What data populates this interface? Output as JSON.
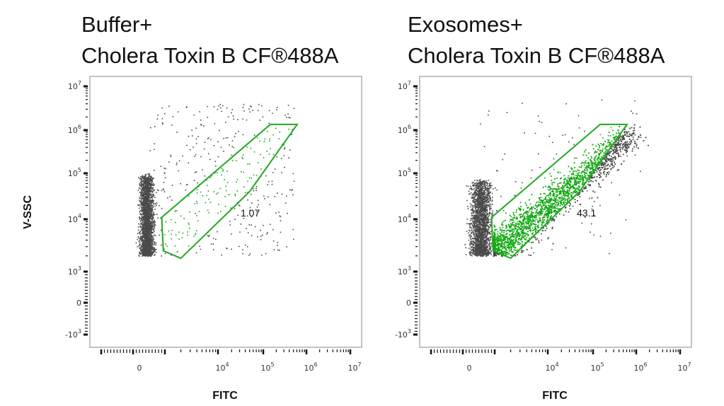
{
  "chart_data": [
    {
      "type": "scatter",
      "title_lines": [
        "Buffer+",
        "Cholera Toxin B CF®488A"
      ],
      "xlabel": "FITC",
      "ylabel": "V-SSC",
      "x_scale": "biexponential",
      "y_scale": "biexponential",
      "x_ticks": [
        {
          "base": "0",
          "exp": ""
        },
        {
          "base": "10",
          "exp": "4"
        },
        {
          "base": "10",
          "exp": "5"
        },
        {
          "base": "10",
          "exp": "6"
        },
        {
          "base": "10",
          "exp": "7"
        }
      ],
      "y_ticks": [
        {
          "base": "10",
          "exp": "7"
        },
        {
          "base": "10",
          "exp": "6"
        },
        {
          "base": "10",
          "exp": "5"
        },
        {
          "base": "10",
          "exp": "4"
        },
        {
          "base": "10",
          "exp": "3"
        },
        {
          "base": "0",
          "exp": ""
        },
        {
          "base": "-10",
          "exp": "3"
        }
      ],
      "gate": {
        "percent": "1.07",
        "color": "#22a822",
        "vertices": [
          [
            900,
            11000
          ],
          [
            950,
            2500
          ],
          [
            2000,
            1800
          ],
          [
            50000,
            40000
          ],
          [
            610000,
            1350000
          ],
          [
            146000,
            1350000
          ]
        ]
      },
      "colors": {
        "events": "#4a4a4a",
        "gated_events": "#1aa31a"
      }
    },
    {
      "type": "scatter",
      "title_lines": [
        "Exosomes+",
        "Cholera Toxin B CF®488A"
      ],
      "xlabel": "FITC",
      "ylabel": "",
      "x_scale": "biexponential",
      "y_scale": "biexponential",
      "x_ticks": [
        {
          "base": "0",
          "exp": ""
        },
        {
          "base": "10",
          "exp": "4"
        },
        {
          "base": "10",
          "exp": "5"
        },
        {
          "base": "10",
          "exp": "6"
        },
        {
          "base": "10",
          "exp": "7"
        }
      ],
      "y_ticks": [
        {
          "base": "10",
          "exp": "7"
        },
        {
          "base": "10",
          "exp": "6"
        },
        {
          "base": "10",
          "exp": "5"
        },
        {
          "base": "10",
          "exp": "4"
        },
        {
          "base": "10",
          "exp": "3"
        },
        {
          "base": "0",
          "exp": ""
        },
        {
          "base": "-10",
          "exp": "3"
        }
      ],
      "gate": {
        "percent": "43.1",
        "color": "#22a822",
        "vertices": [
          [
            900,
            11000
          ],
          [
            950,
            2500
          ],
          [
            2000,
            1800
          ],
          [
            50000,
            40000
          ],
          [
            610000,
            1350000
          ],
          [
            146000,
            1350000
          ]
        ]
      },
      "colors": {
        "events": "#4a4a4a",
        "gated_events": "#12a812"
      }
    }
  ]
}
